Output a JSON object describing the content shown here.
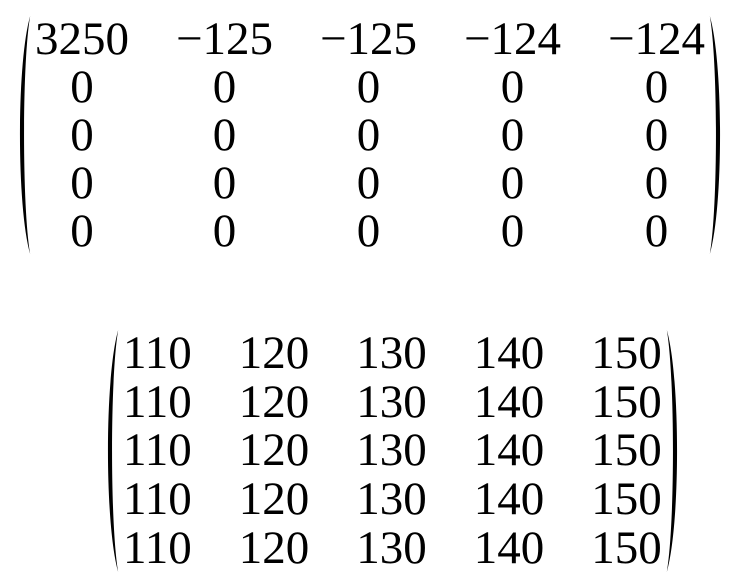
{
  "page": {
    "background": "#ffffff",
    "ink": "#000000",
    "content_type": "math-equations"
  },
  "matrices": {
    "m1": {
      "label": "matrix-1",
      "rows": [
        [
          "3250",
          "−125",
          "−125",
          "−124",
          "−124"
        ],
        [
          "0",
          "0",
          "0",
          "0",
          "0"
        ],
        [
          "0",
          "0",
          "0",
          "0",
          "0"
        ],
        [
          "0",
          "0",
          "0",
          "0",
          "0"
        ],
        [
          "0",
          "0",
          "0",
          "0",
          "0"
        ]
      ]
    },
    "m2": {
      "label": "matrix-2",
      "rows": [
        [
          "110",
          "120",
          "130",
          "140",
          "150"
        ],
        [
          "110",
          "120",
          "130",
          "140",
          "150"
        ],
        [
          "110",
          "120",
          "130",
          "140",
          "150"
        ],
        [
          "110",
          "120",
          "130",
          "140",
          "150"
        ],
        [
          "110",
          "120",
          "130",
          "140",
          "150"
        ]
      ]
    }
  }
}
